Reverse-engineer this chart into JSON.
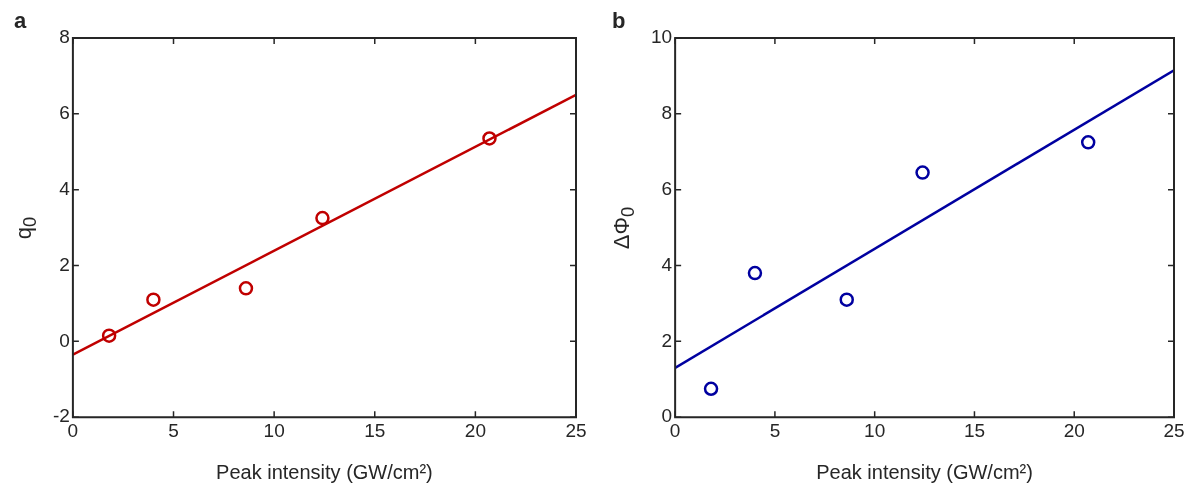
{
  "chart_data": [
    {
      "type": "scatter",
      "title": "a",
      "xlabel": "Peak intensity (GW/cm²)",
      "ylabel": "q$_{0}$",
      "xlim": [
        0,
        25
      ],
      "xticks": [
        0,
        5,
        10,
        15,
        20,
        25
      ],
      "ylim": [
        -2,
        8
      ],
      "yticks": [
        -2,
        0,
        2,
        4,
        6,
        8
      ],
      "grid": false,
      "legend": false,
      "marker": "circle",
      "series": [
        {
          "color": "#c00000",
          "x": [
            1.8,
            4.0,
            8.6,
            12.4,
            20.7
          ],
          "values": [
            0.15,
            1.1,
            1.4,
            3.25,
            5.35
          ]
        },
        {
          "type": "line",
          "color": "#c00000",
          "marker": "none",
          "x": [
            0,
            25
          ],
          "values": [
            -0.35,
            6.5
          ]
        }
      ]
    },
    {
      "type": "scatter",
      "title": "b",
      "xlabel": "Peak intensity (GW/cm²)",
      "ylabel": "ΔΦ$_{0}$",
      "xlim": [
        0,
        25
      ],
      "xticks": [
        0,
        5,
        10,
        15,
        20,
        25
      ],
      "ylim": [
        0,
        10
      ],
      "yticks": [
        0,
        2,
        4,
        6,
        8,
        10
      ],
      "grid": false,
      "legend": false,
      "marker": "circle",
      "series": [
        {
          "color": "#0000a0",
          "x": [
            1.8,
            4.0,
            8.6,
            12.4,
            20.7
          ],
          "values": [
            0.75,
            3.8,
            3.1,
            6.45,
            7.25
          ]
        },
        {
          "type": "line",
          "color": "#0000a0",
          "marker": "none",
          "x": [
            0,
            25
          ],
          "values": [
            1.3,
            9.15
          ]
        }
      ]
    }
  ]
}
